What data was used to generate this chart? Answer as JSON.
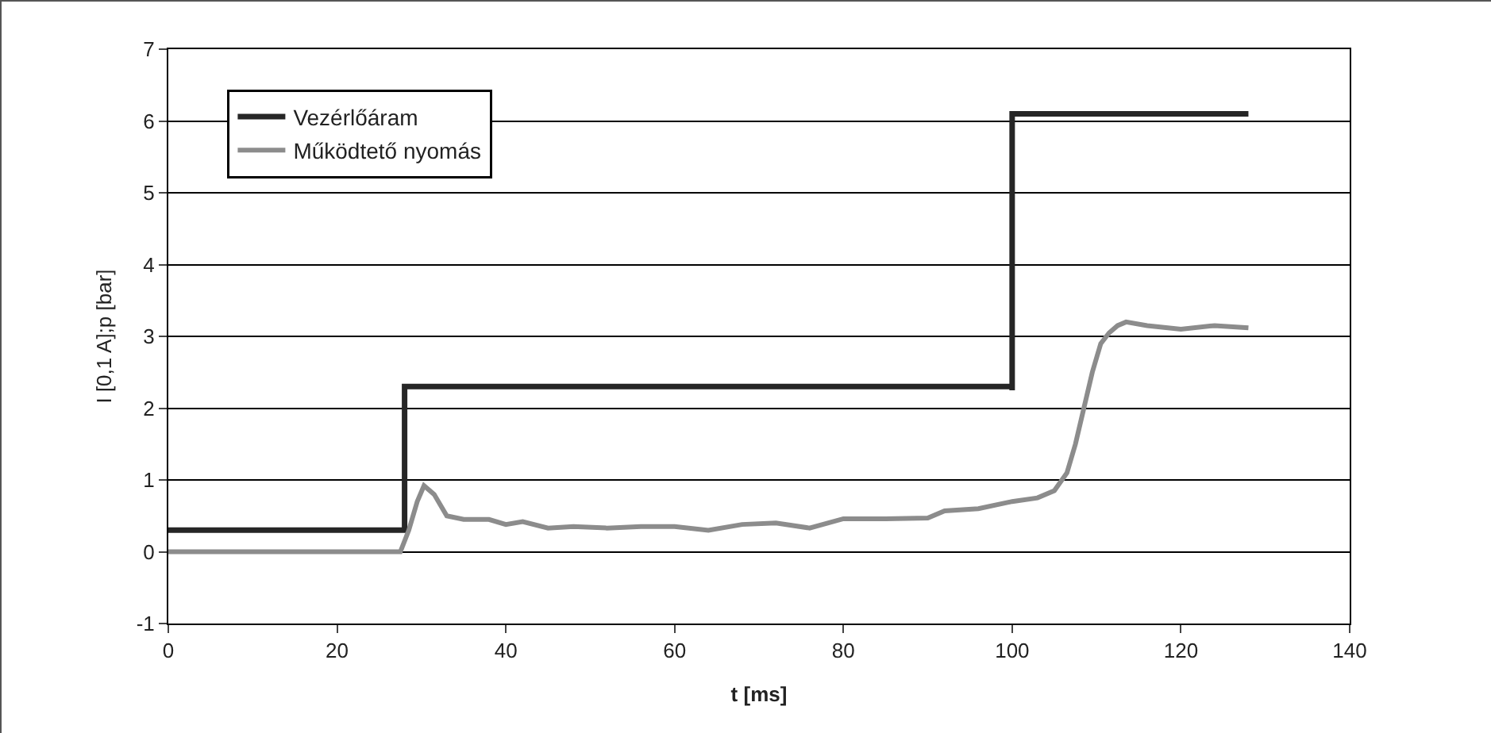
{
  "chart_data": {
    "type": "line",
    "xlabel": "t [ms]",
    "ylabel": "I [0,1 A];p [bar]",
    "xlim": [
      0,
      140
    ],
    "xticks": [
      0,
      20,
      40,
      60,
      80,
      100,
      120,
      140
    ],
    "ylim": [
      -1,
      7
    ],
    "yticks": [
      -1,
      0,
      1,
      2,
      3,
      4,
      5,
      6,
      7
    ],
    "grid": "y",
    "legend": "top left",
    "marker": "none",
    "line_style": "solid",
    "series": [
      {
        "name": "Vezérlőáram",
        "color": "#262626",
        "type": "step",
        "x": [
          0,
          28,
          28,
          99,
          100,
          100,
          128
        ],
        "values": [
          0.3,
          0.3,
          2.3,
          2.3,
          2.25,
          6.1,
          6.1
        ]
      },
      {
        "name": "Működtető nyomás",
        "color": "#8c8c8c",
        "x": [
          0,
          27.5,
          28.5,
          29.5,
          30.3,
          31.5,
          33,
          35,
          38,
          40,
          42,
          45,
          48,
          52,
          56,
          60,
          64,
          68,
          72,
          76,
          80,
          85,
          90,
          92,
          96,
          100,
          103,
          105,
          106.5,
          107.5,
          108.5,
          109.5,
          110.5,
          111.5,
          112.5,
          113.5,
          116,
          120,
          124,
          128
        ],
        "values": [
          0,
          0,
          0.3,
          0.7,
          0.92,
          0.8,
          0.5,
          0.45,
          0.45,
          0.38,
          0.42,
          0.33,
          0.35,
          0.33,
          0.35,
          0.35,
          0.3,
          0.38,
          0.4,
          0.33,
          0.46,
          0.46,
          0.47,
          0.57,
          0.6,
          0.7,
          0.75,
          0.85,
          1.1,
          1.5,
          2.0,
          2.5,
          2.9,
          3.05,
          3.15,
          3.2,
          3.15,
          3.1,
          3.15,
          3.12
        ]
      }
    ]
  }
}
